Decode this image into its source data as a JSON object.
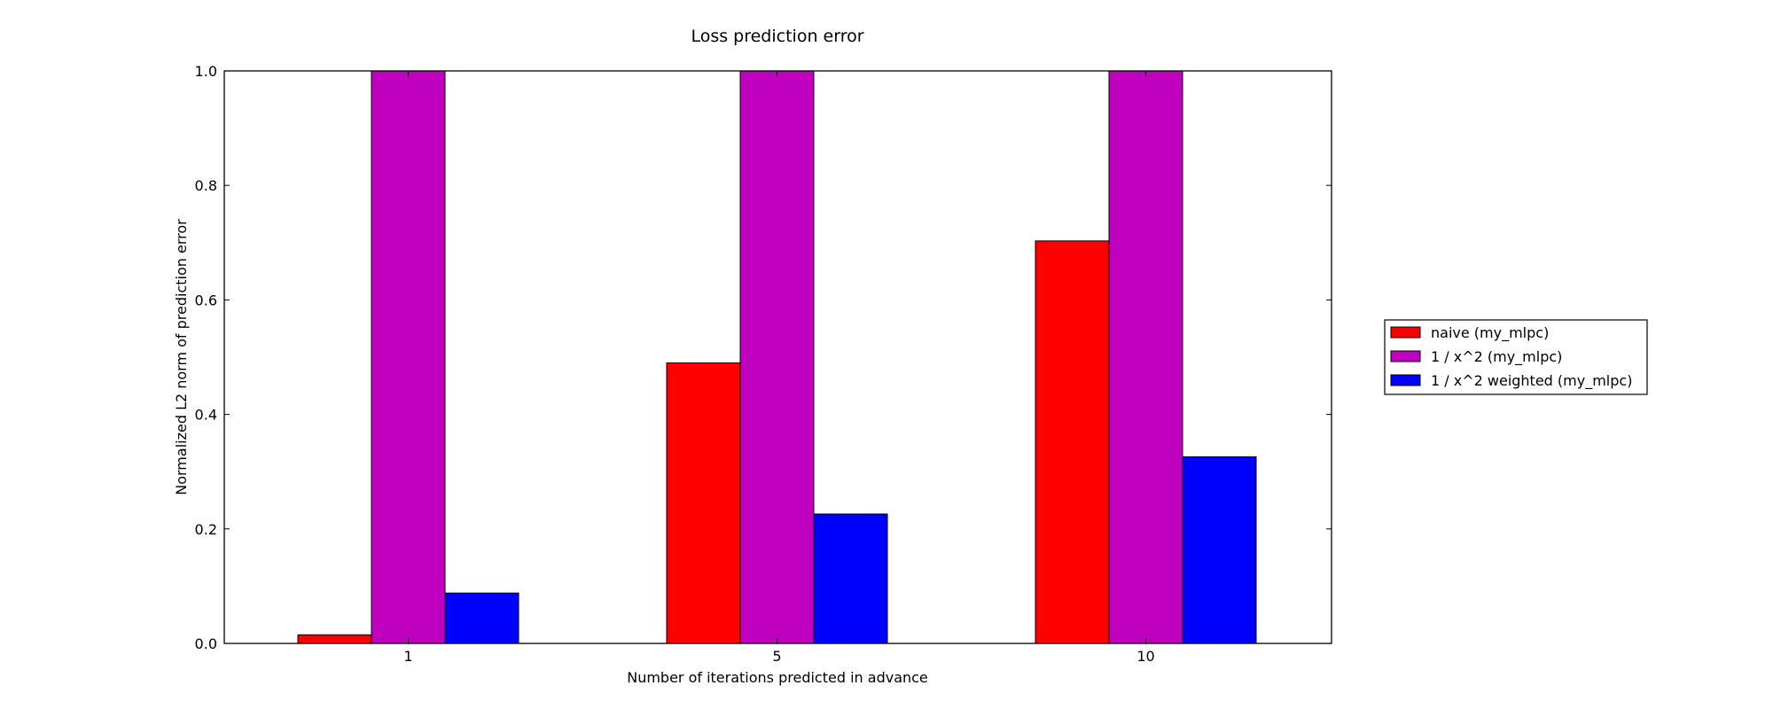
{
  "chart_data": {
    "type": "bar",
    "title": "Loss prediction error",
    "xlabel": "Number of iterations predicted in advance",
    "ylabel": "Normalized L2 norm of prediction error",
    "categories": [
      "1",
      "5",
      "10"
    ],
    "ylim": [
      0.0,
      1.0
    ],
    "yticks": [
      "0.0",
      "0.2",
      "0.4",
      "0.6",
      "0.8",
      "1.0"
    ],
    "grid": false,
    "legend_position": "right",
    "series": [
      {
        "name": "naive (my_mlpc)",
        "color": "#ff0000",
        "values": [
          0.015,
          0.49,
          0.703
        ]
      },
      {
        "name": "1 / x^2 (my_mlpc)",
        "color": "#bf00bf",
        "values": [
          1.0,
          1.0,
          1.0
        ]
      },
      {
        "name": "1 / x^2 weighted (my_mlpc)",
        "color": "#0000ff",
        "values": [
          0.088,
          0.226,
          0.326
        ]
      }
    ]
  }
}
